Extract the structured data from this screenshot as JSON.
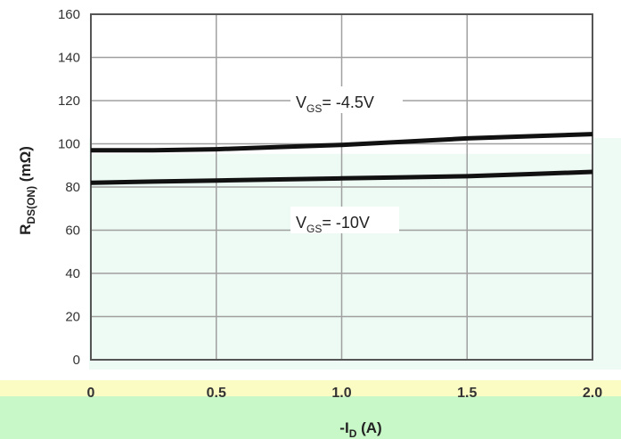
{
  "chart_data": {
    "type": "line",
    "xlabel": {
      "main": "-I",
      "sub": "D",
      "unit": " (A)"
    },
    "ylabel": {
      "main": "R",
      "sub": "DS(ON)",
      "unit": " (mΩ)"
    },
    "xlim": [
      0,
      2.0
    ],
    "ylim": [
      0,
      160
    ],
    "xticks": [
      0,
      0.5,
      1.0,
      1.5,
      2.0
    ],
    "xtick_labels": [
      "0",
      "0.5",
      "1.0",
      "1.5",
      "2.0"
    ],
    "yticks": [
      0,
      20,
      40,
      60,
      80,
      100,
      120,
      140,
      160
    ],
    "ytick_labels": [
      "0",
      "20",
      "40",
      "60",
      "80",
      "100",
      "120",
      "140",
      "160"
    ],
    "grid": true,
    "series": [
      {
        "name": {
          "main": "V",
          "sub": "GS",
          "rest": "= -4.5V"
        },
        "x": [
          0,
          0.25,
          0.5,
          0.75,
          1.0,
          1.25,
          1.5,
          1.75,
          2.0
        ],
        "y": [
          97,
          97,
          97.5,
          98.5,
          99.5,
          101,
          102.5,
          103.5,
          104.5
        ]
      },
      {
        "name": {
          "main": "V",
          "sub": "GS",
          "rest": "= -10V"
        },
        "x": [
          0,
          0.25,
          0.5,
          0.75,
          1.0,
          1.25,
          1.5,
          1.75,
          2.0
        ],
        "y": [
          82,
          82.5,
          83,
          83.5,
          84,
          84.5,
          85,
          86,
          87
        ]
      }
    ],
    "colors": {
      "line": "#111111",
      "grid": "#a0a0a0",
      "frame": "#555555",
      "plot_bg": "#ffffff",
      "band_light": "#eefaf4",
      "band_yellow": "#fbfbc4",
      "band_green": "#c8f7c8"
    }
  }
}
